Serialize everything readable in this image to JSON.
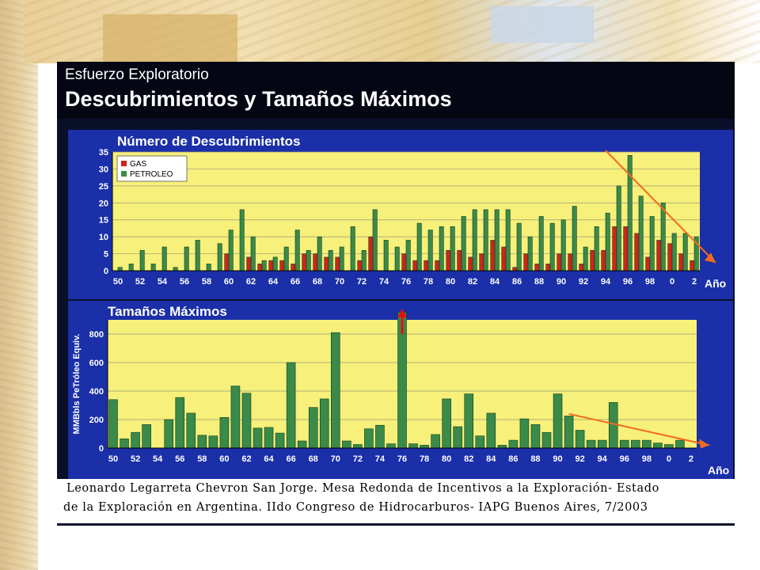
{
  "header": {
    "subtitle": "Esfuerzo Exploratorio",
    "title": "Descubrimientos y Tamaños Máximos"
  },
  "caption": {
    "line1": "Leonardo Legarreta Chevron San Jorge. Mesa Redonda de Incentivos a la Exploración- Estado",
    "line2": "de la Exploración en Argentina. IIdo Congreso de Hidrocarburos- IAPG Buenos Aires, 7/2003"
  },
  "colors": {
    "panel_bg": "#1a2fa8",
    "plot_bg": "#f7f07a",
    "gas": "#d0241b",
    "petroleo": "#3a8a4a",
    "arrow": "#f26b1d",
    "arrow_up": "#e01010"
  },
  "chart_data": [
    {
      "type": "bar",
      "title": "Número de Descubrimientos",
      "xlabel": "Año",
      "ylabel": "",
      "ylim": [
        0,
        35
      ],
      "yticks": [
        0,
        5,
        10,
        15,
        20,
        25,
        30,
        35
      ],
      "x_tick_labels": [
        "50",
        "52",
        "54",
        "56",
        "58",
        "60",
        "62",
        "64",
        "66",
        "68",
        "70",
        "72",
        "74",
        "76",
        "78",
        "80",
        "82",
        "84",
        "86",
        "88",
        "90",
        "92",
        "94",
        "96",
        "98",
        "0",
        "2"
      ],
      "categories": [
        "1950",
        "1951",
        "1952",
        "1953",
        "1954",
        "1955",
        "1956",
        "1957",
        "1958",
        "1959",
        "1960",
        "1961",
        "1962",
        "1963",
        "1964",
        "1965",
        "1966",
        "1967",
        "1968",
        "1969",
        "1970",
        "1971",
        "1972",
        "1973",
        "1974",
        "1975",
        "1976",
        "1977",
        "1978",
        "1979",
        "1980",
        "1981",
        "1982",
        "1983",
        "1984",
        "1985",
        "1986",
        "1987",
        "1988",
        "1989",
        "1990",
        "1991",
        "1992",
        "1993",
        "1994",
        "1995",
        "1996",
        "1997",
        "1998",
        "1999",
        "2000",
        "2001",
        "2002"
      ],
      "legend": {
        "position": "top-left",
        "entries": [
          "GAS",
          "PETROLEO"
        ]
      },
      "series": [
        {
          "name": "GAS",
          "values": [
            0,
            0,
            0,
            0,
            0,
            0,
            0,
            0,
            0,
            0,
            5,
            0,
            4,
            2,
            3,
            3,
            2,
            5,
            5,
            4,
            4,
            0,
            3,
            10,
            0,
            0,
            5,
            3,
            3,
            3,
            6,
            6,
            4,
            5,
            9,
            7,
            1,
            5,
            2,
            2,
            5,
            5,
            2,
            6,
            6,
            13,
            13,
            11,
            4,
            9,
            8,
            5,
            3
          ]
        },
        {
          "name": "PETROLEO",
          "values": [
            1,
            2,
            6,
            2,
            7,
            1,
            7,
            9,
            2,
            8,
            12,
            18,
            10,
            3,
            4,
            7,
            12,
            6,
            10,
            6,
            7,
            13,
            6,
            18,
            9,
            7,
            9,
            14,
            12,
            13,
            13,
            16,
            18,
            18,
            18,
            18,
            14,
            10,
            16,
            14,
            15,
            19,
            7,
            13,
            17,
            25,
            34,
            22,
            16,
            20,
            11,
            11,
            10
          ]
        }
      ],
      "annotations": [
        "declining trend arrow from 1996 peak"
      ]
    },
    {
      "type": "bar",
      "title": "Tamaños Máximos",
      "xlabel": "Año",
      "ylabel": "MMBbls PeTróleo Equiv.",
      "ylim": [
        0,
        900
      ],
      "yticks": [
        0,
        200,
        400,
        600,
        800
      ],
      "x_tick_labels": [
        "50",
        "52",
        "54",
        "56",
        "58",
        "60",
        "62",
        "64",
        "66",
        "68",
        "70",
        "72",
        "74",
        "76",
        "78",
        "80",
        "82",
        "84",
        "86",
        "88",
        "90",
        "92",
        "94",
        "96",
        "98",
        "0",
        "2"
      ],
      "categories": [
        "1950",
        "1951",
        "1952",
        "1953",
        "1954",
        "1955",
        "1956",
        "1957",
        "1958",
        "1959",
        "1960",
        "1961",
        "1962",
        "1963",
        "1964",
        "1965",
        "1966",
        "1967",
        "1968",
        "1969",
        "1970",
        "1971",
        "1972",
        "1973",
        "1974",
        "1975",
        "1976",
        "1977",
        "1978",
        "1979",
        "1980",
        "1981",
        "1982",
        "1983",
        "1984",
        "1985",
        "1986",
        "1987",
        "1988",
        "1989",
        "1990",
        "1991",
        "1992",
        "1993",
        "1994",
        "1995",
        "1996",
        "1997",
        "1998",
        "1999",
        "2000",
        "2001",
        "2002"
      ],
      "series": [
        {
          "name": "",
          "values": [
            340,
            65,
            110,
            165,
            0,
            200,
            355,
            245,
            90,
            85,
            215,
            435,
            385,
            140,
            145,
            105,
            600,
            50,
            285,
            345,
            810,
            50,
            25,
            135,
            160,
            30,
            960,
            30,
            20,
            95,
            345,
            150,
            380,
            85,
            245,
            20,
            55,
            205,
            165,
            110,
            380,
            225,
            125,
            55,
            55,
            320,
            55,
            55,
            55,
            35,
            25,
            55,
            0
          ]
        }
      ],
      "annotations": [
        "peak arrow at 1976",
        "declining trend arrow"
      ]
    }
  ]
}
